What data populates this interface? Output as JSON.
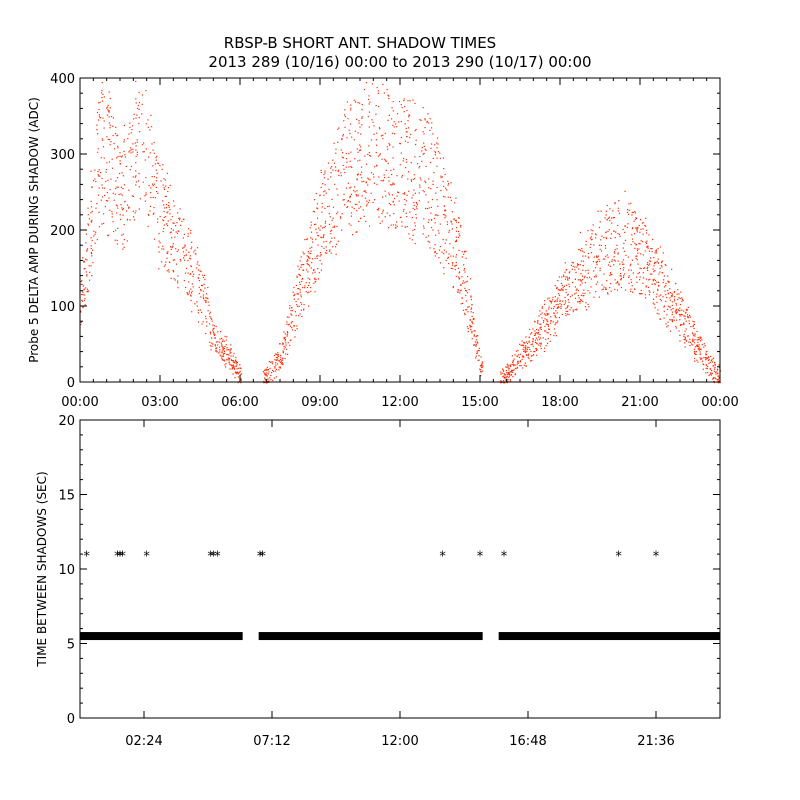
{
  "title_line1": "RBSP-B SHORT ANT. SHADOW TIMES",
  "title_line2": "2013 289 (10/16) 00:00 to 2013 290 (10/17) 00:00",
  "colors": {
    "top_series": "#ff2a00",
    "bottom_series": "#000000",
    "axes": "#000000"
  },
  "chart_data": [
    {
      "type": "scatter",
      "title": "RBSP-B SHORT ANT. SHADOW TIMES",
      "subtitle": "2013 289 (10/16) 00:00 to 2013 290 (10/17) 00:00",
      "xlabel": "",
      "ylabel": "Probe 5 DELTA AMP DURING SHADOW (ADC)",
      "xlim_hours": [
        0,
        24
      ],
      "ylim": [
        0,
        400
      ],
      "x_tick_hours": [
        0,
        3,
        6,
        9,
        12,
        15,
        18,
        21,
        24
      ],
      "x_tick_labels": [
        "00:00",
        "03:00",
        "06:00",
        "09:00",
        "12:00",
        "15:00",
        "18:00",
        "21:00",
        "00:00"
      ],
      "y_ticks": [
        0,
        100,
        200,
        300,
        400
      ],
      "y_tick_labels": [
        "0",
        "100",
        "200",
        "300",
        "400"
      ],
      "marker_color": "#ff2a00",
      "envelope": [
        {
          "x": 0.0,
          "y": 120
        },
        {
          "x": 0.5,
          "y": 300
        },
        {
          "x": 0.8,
          "y": 380
        },
        {
          "x": 1.2,
          "y": 340
        },
        {
          "x": 1.5,
          "y": 300
        },
        {
          "x": 2.0,
          "y": 380
        },
        {
          "x": 2.5,
          "y": 360
        },
        {
          "x": 3.0,
          "y": 280
        },
        {
          "x": 3.5,
          "y": 230
        },
        {
          "x": 4.0,
          "y": 200
        },
        {
          "x": 4.5,
          "y": 160
        },
        {
          "x": 5.0,
          "y": 70
        },
        {
          "x": 5.5,
          "y": 50
        },
        {
          "x": 6.0,
          "y": 10
        },
        {
          "x": 6.9,
          "y": 5
        },
        {
          "x": 7.5,
          "y": 40
        },
        {
          "x": 8.0,
          "y": 120
        },
        {
          "x": 9.0,
          "y": 260
        },
        {
          "x": 10.0,
          "y": 360
        },
        {
          "x": 11.0,
          "y": 370
        },
        {
          "x": 12.0,
          "y": 360
        },
        {
          "x": 13.0,
          "y": 340
        },
        {
          "x": 14.0,
          "y": 240
        },
        {
          "x": 14.5,
          "y": 150
        },
        {
          "x": 15.0,
          "y": 30
        },
        {
          "x": 15.8,
          "y": 5
        },
        {
          "x": 16.5,
          "y": 40
        },
        {
          "x": 17.5,
          "y": 100
        },
        {
          "x": 18.5,
          "y": 170
        },
        {
          "x": 19.5,
          "y": 210
        },
        {
          "x": 20.5,
          "y": 230
        },
        {
          "x": 21.5,
          "y": 180
        },
        {
          "x": 22.5,
          "y": 110
        },
        {
          "x": 23.5,
          "y": 30
        },
        {
          "x": 24.0,
          "y": 10
        }
      ]
    },
    {
      "type": "scatter",
      "xlabel": "",
      "ylabel": "TIME BETWEEN SHADOWS (SEC)",
      "xlim_hours": [
        0,
        24
      ],
      "ylim": [
        0,
        20
      ],
      "x_tick_hours": [
        2.4,
        7.2,
        12.0,
        16.8,
        21.6
      ],
      "x_tick_labels": [
        "02:24",
        "07:12",
        "12:00",
        "16:48",
        "21:36"
      ],
      "y_ticks": [
        0,
        5,
        10,
        15,
        20
      ],
      "y_tick_labels": [
        "0",
        "5",
        "10",
        "15",
        "20"
      ],
      "marker_color": "#000000",
      "baseline_value": 5.5,
      "baseline_segments_hours": [
        [
          0.0,
          6.1
        ],
        [
          6.7,
          15.1
        ],
        [
          15.7,
          24.0
        ]
      ],
      "outliers": [
        {
          "x": 0.25,
          "y": 10.9
        },
        {
          "x": 1.4,
          "y": 10.9
        },
        {
          "x": 1.5,
          "y": 10.9
        },
        {
          "x": 1.6,
          "y": 10.9
        },
        {
          "x": 2.5,
          "y": 10.9
        },
        {
          "x": 4.9,
          "y": 10.9
        },
        {
          "x": 5.0,
          "y": 10.9
        },
        {
          "x": 5.15,
          "y": 10.9
        },
        {
          "x": 6.75,
          "y": 10.9
        },
        {
          "x": 6.85,
          "y": 10.9
        },
        {
          "x": 13.6,
          "y": 10.9
        },
        {
          "x": 15.0,
          "y": 10.9
        },
        {
          "x": 15.9,
          "y": 10.9
        },
        {
          "x": 20.2,
          "y": 10.9
        },
        {
          "x": 21.6,
          "y": 10.9
        }
      ]
    }
  ]
}
